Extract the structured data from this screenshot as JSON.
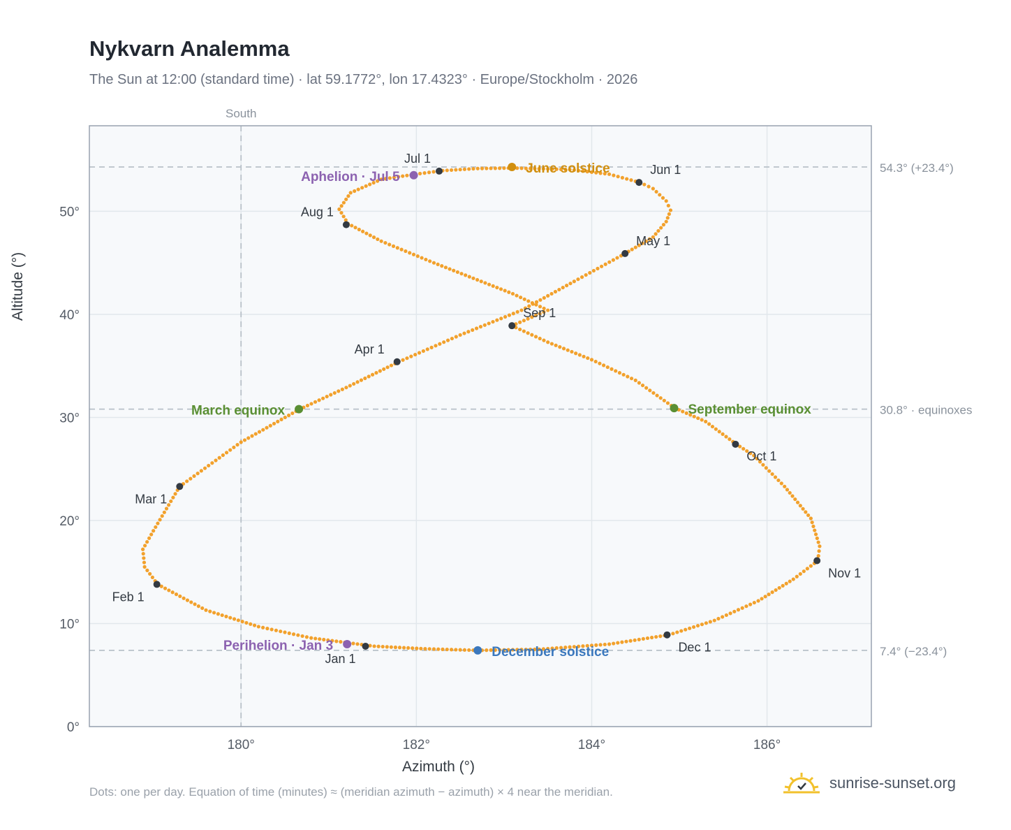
{
  "title": "Nykvarn Analemma",
  "subtitle": "The Sun at 12:00 (standard time) · lat 59.1772°, lon 17.4323° · Europe/Stockholm · 2026",
  "footnote": "Dots: one per day. Equation of time (minutes) ≈ (meridian azimuth − azimuth) × 4 near the meridian.",
  "brand": {
    "text": "sunrise-sunset.org",
    "icon": "sun-logo-icon"
  },
  "colors": {
    "path": "#f2a12c",
    "month": "#333a42",
    "perihelion": "#8c62b0",
    "june": "#d18f0f",
    "equinox": "#5a8f33",
    "december": "#3b78bd",
    "grid": "#e2e7ec",
    "plot_bg": "#f7f9fb",
    "frame": "#98a2b0",
    "ref": "#b8c1c9"
  },
  "chart_data": {
    "type": "scatter",
    "xlabel": "Azimuth (°)",
    "ylabel": "Altitude (°)",
    "xlim": [
      178.27,
      187.19
    ],
    "ylim": [
      0,
      58.3
    ],
    "x_ticks": [
      180,
      182,
      184,
      186
    ],
    "x_tick_labels": [
      "180°",
      "182°",
      "184°",
      "186°"
    ],
    "y_ticks": [
      0,
      10,
      20,
      30,
      40,
      50
    ],
    "y_tick_labels": [
      "0°",
      "10°",
      "20°",
      "30°",
      "40°",
      "50°"
    ],
    "grid": true,
    "reference_lines": [
      {
        "axis": "x",
        "value": 180,
        "label": "South"
      },
      {
        "axis": "y",
        "value": 54.3,
        "label": "54.3° (+23.4°)"
      },
      {
        "axis": "y",
        "value": 30.8,
        "label": "30.8° · equinoxes"
      },
      {
        "axis": "y",
        "value": 7.4,
        "label": "7.4° (−23.4°)"
      }
    ],
    "daily_path": [
      [
        181.52,
        7.8
      ],
      [
        180.8,
        8.6
      ],
      [
        180.2,
        9.7
      ],
      [
        179.6,
        11.3
      ],
      [
        179.05,
        13.8
      ],
      [
        178.9,
        15.5
      ],
      [
        178.88,
        17.2
      ],
      [
        179.0,
        19.0
      ],
      [
        179.3,
        23.3
      ],
      [
        180.0,
        27.6
      ],
      [
        180.67,
        30.8
      ],
      [
        181.2,
        32.9
      ],
      [
        181.8,
        35.4
      ],
      [
        182.5,
        38.0
      ],
      [
        183.2,
        40.4
      ],
      [
        183.8,
        43.2
      ],
      [
        184.38,
        45.9
      ],
      [
        184.7,
        47.5
      ],
      [
        184.85,
        49.0
      ],
      [
        184.9,
        50.1
      ],
      [
        184.85,
        51.0
      ],
      [
        184.7,
        52.2
      ],
      [
        184.55,
        52.8
      ],
      [
        184.2,
        53.6
      ],
      [
        183.75,
        54.05
      ],
      [
        183.1,
        54.2
      ],
      [
        182.7,
        54.15
      ],
      [
        182.3,
        53.95
      ],
      [
        181.99,
        53.6
      ],
      [
        181.6,
        53.1
      ],
      [
        181.25,
        51.8
      ],
      [
        181.12,
        50.2
      ],
      [
        181.22,
        48.8
      ],
      [
        181.6,
        47.1
      ],
      [
        182.2,
        45.0
      ],
      [
        183.1,
        42.0
      ],
      [
        183.5,
        40.4
      ],
      [
        183.09,
        38.9
      ],
      [
        183.5,
        37.3
      ],
      [
        184.0,
        35.6
      ],
      [
        184.5,
        33.6
      ],
      [
        184.95,
        30.9
      ],
      [
        185.3,
        29.6
      ],
      [
        185.65,
        27.4
      ],
      [
        185.85,
        26.3
      ],
      [
        186.2,
        23.3
      ],
      [
        186.5,
        20.2
      ],
      [
        186.6,
        17.5
      ],
      [
        186.58,
        16.1
      ],
      [
        186.3,
        14.3
      ],
      [
        185.9,
        12.2
      ],
      [
        185.4,
        10.3
      ],
      [
        184.88,
        8.9
      ],
      [
        184.2,
        8.0
      ],
      [
        183.4,
        7.5
      ],
      [
        182.7,
        7.4
      ],
      [
        182.1,
        7.55
      ],
      [
        181.52,
        7.8
      ]
    ],
    "months": [
      {
        "label": "Jan 1",
        "x": 181.42,
        "y": 7.8
      },
      {
        "label": "Feb 1",
        "x": 179.04,
        "y": 13.8
      },
      {
        "label": "Mar 1",
        "x": 179.3,
        "y": 23.3
      },
      {
        "label": "Apr 1",
        "x": 181.78,
        "y": 35.4
      },
      {
        "label": "May 1",
        "x": 184.38,
        "y": 45.9
      },
      {
        "label": "Jun 1",
        "x": 184.54,
        "y": 52.8
      },
      {
        "label": "Jul 1",
        "x": 182.26,
        "y": 53.9
      },
      {
        "label": "Aug 1",
        "x": 181.2,
        "y": 48.7
      },
      {
        "label": "Sep 1",
        "x": 183.09,
        "y": 38.9
      },
      {
        "label": "Oct 1",
        "x": 185.64,
        "y": 27.4
      },
      {
        "label": "Nov 1",
        "x": 186.57,
        "y": 16.1
      },
      {
        "label": "Dec 1",
        "x": 184.86,
        "y": 8.9
      }
    ],
    "events": [
      {
        "label": "Perihelion · Jan 3",
        "x": 181.21,
        "y": 8.0,
        "color": "#8c62b0"
      },
      {
        "label": "Aphelion · Jul 5",
        "x": 181.97,
        "y": 53.5,
        "color": "#8c62b0"
      },
      {
        "label": "March equinox",
        "x": 180.66,
        "y": 30.8,
        "color": "#5a8f33"
      },
      {
        "label": "September equinox",
        "x": 184.94,
        "y": 30.9,
        "color": "#5a8f33"
      },
      {
        "label": "June solstice",
        "x": 183.09,
        "y": 54.3,
        "color": "#d18f0f"
      },
      {
        "label": "December solstice",
        "x": 182.7,
        "y": 7.4,
        "color": "#3b78bd"
      }
    ]
  }
}
